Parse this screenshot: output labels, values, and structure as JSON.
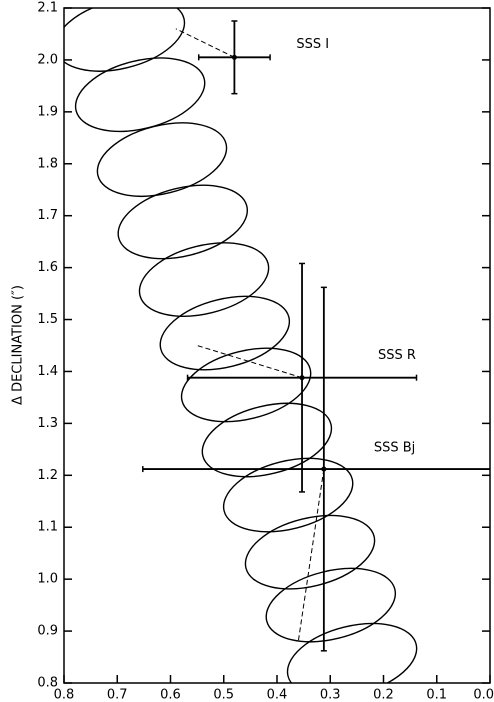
{
  "chart_data": {
    "type": "scatter",
    "ylabel": "Δ DECLINATION (″)",
    "xlim": [
      0.8,
      0.0
    ],
    "ylim": [
      0.8,
      2.1
    ],
    "xticks": [
      0.8,
      0.7,
      0.6,
      0.5,
      0.4,
      0.3,
      0.2,
      0.1,
      {
        "value": 0,
        "label": "0.0"
      }
    ],
    "yticks": [
      0.8,
      0.9,
      {
        "value": 1,
        "label": "1.0"
      },
      1.1,
      1.2,
      1.3,
      1.4,
      1.5,
      1.6,
      1.7,
      1.8,
      1.9,
      {
        "value": 2,
        "label": "2.0"
      },
      2.1
    ],
    "points": [
      {
        "name": "SSS I",
        "x": 0.48,
        "y": 2.005,
        "xerr": 0.067,
        "yerr": 0.07,
        "connector_to": [
          0.59,
          2.06
        ]
      },
      {
        "name": "SSS R",
        "x": 0.353,
        "y": 1.388,
        "xerr": 0.215,
        "yerr": 0.22,
        "connector_to": [
          0.55,
          1.45
        ]
      },
      {
        "name": "SSS Bj",
        "x": 0.312,
        "y": 1.212,
        "xerr": 0.34,
        "yerr": 0.35,
        "connector_to": [
          0.36,
          0.88
        ]
      }
    ],
    "ellipses": {
      "x": [
        0.695,
        0.657,
        0.616,
        0.577,
        0.537,
        0.498,
        0.458,
        0.419,
        0.379,
        0.338,
        0.299,
        0.259
      ],
      "y": [
        2.049,
        1.933,
        1.808,
        1.688,
        1.577,
        1.474,
        1.374,
        1.268,
        1.162,
        1.052,
        0.95,
        0.844
      ]
    }
  }
}
